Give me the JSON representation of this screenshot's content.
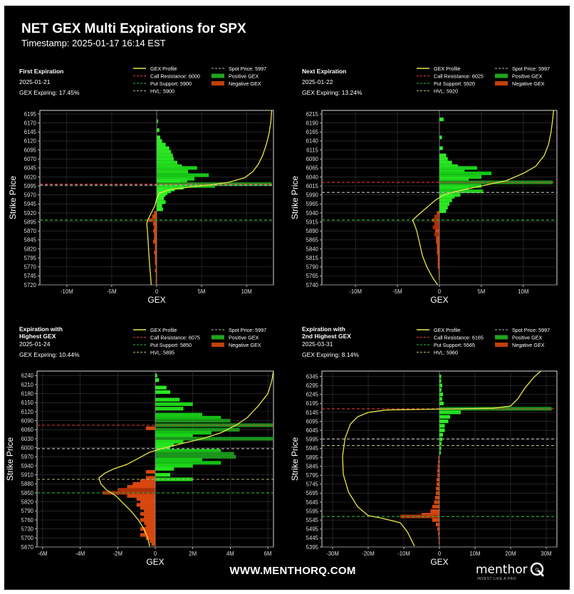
{
  "header": {
    "title": "NET GEX Multi Expirations for SPX",
    "timestamp": "Timestamp: 2025-01-17 16:14 EST"
  },
  "footer": {
    "url": "WWW.MENTHORQ.COM",
    "brand": "menthor",
    "brand_mark": "Q",
    "tagline": "INVEST LIKE A PRO"
  },
  "colors": {
    "background": "#000000",
    "profile": "#e8e84a",
    "call_resistance": "#e23a3a",
    "put_support": "#2fbf3a",
    "spot": "#bdbdbd",
    "hvl": "#b5b577",
    "positive": "#00e000",
    "negative": "#d23b10"
  },
  "chart_data": [
    {
      "type": "bar",
      "orientation": "horizontal",
      "title": "First Expiration",
      "date": "2025-01-21",
      "expiring": "GEX Expiring: 17.45%",
      "xlabel": "GEX",
      "ylabel": "Strike Price",
      "xlim": [
        -13,
        13
      ],
      "xticks": [
        -10,
        -5,
        0,
        5,
        10
      ],
      "xtick_labels": [
        "-10M",
        "-5M",
        "0",
        "5M",
        "10M"
      ],
      "ylim": [
        5720,
        6205
      ],
      "yticks": [
        5720,
        5745,
        5770,
        5795,
        5820,
        5845,
        5870,
        5895,
        5920,
        5945,
        5970,
        5995,
        6020,
        6045,
        6070,
        6095,
        6120,
        6145,
        6170,
        6195
      ],
      "levels": {
        "call_resistance": 6000,
        "put_support": 5900,
        "spot": 5997,
        "hvl": 5900
      },
      "legend": [
        "GEX Profile",
        "Call Resistance: 6000",
        "Put Support: 5900",
        "HVL: 5900",
        "Spot Price: 5997",
        "Positive GEX",
        "Negative GEX"
      ],
      "bars": [
        [
          6175,
          0.15
        ],
        [
          6150,
          0.3
        ],
        [
          6130,
          0.4
        ],
        [
          6120,
          0.6
        ],
        [
          6110,
          1.0
        ],
        [
          6100,
          1.4
        ],
        [
          6090,
          1.6
        ],
        [
          6080,
          1.8
        ],
        [
          6070,
          1.9
        ],
        [
          6060,
          2.3
        ],
        [
          6050,
          2.8
        ],
        [
          6045,
          4.5
        ],
        [
          6035,
          3.5
        ],
        [
          6025,
          5.8
        ],
        [
          6015,
          4.2
        ],
        [
          6010,
          3.4
        ],
        [
          6005,
          2.6
        ],
        [
          6000,
          12.8
        ],
        [
          5995,
          6.5
        ],
        [
          5990,
          3.0
        ],
        [
          5985,
          2.0
        ],
        [
          5980,
          1.6
        ],
        [
          5975,
          1.2
        ],
        [
          5970,
          1.0
        ],
        [
          5965,
          0.8
        ],
        [
          5960,
          0.8
        ],
        [
          5950,
          1.0
        ],
        [
          5940,
          0.6
        ],
        [
          5930,
          0.7
        ],
        [
          5920,
          -0.3
        ],
        [
          5910,
          -0.5
        ],
        [
          5900,
          -1.0
        ],
        [
          5890,
          -0.4
        ],
        [
          5880,
          -0.3
        ],
        [
          5870,
          -0.4
        ],
        [
          5860,
          -0.3
        ],
        [
          5850,
          -0.3
        ],
        [
          5840,
          -0.4
        ],
        [
          5830,
          -0.2
        ],
        [
          5820,
          -0.2
        ],
        [
          5810,
          -0.3
        ],
        [
          5800,
          -0.2
        ],
        [
          5790,
          -0.2
        ],
        [
          5780,
          -0.2
        ],
        [
          5770,
          -0.1
        ],
        [
          5760,
          -0.2
        ],
        [
          5750,
          -0.1
        ],
        [
          5740,
          -0.1
        ],
        [
          5730,
          -0.1
        ],
        [
          5725,
          -0.1
        ]
      ],
      "profile": [
        [
          -0.6,
          5720
        ],
        [
          -0.7,
          5750
        ],
        [
          -0.8,
          5780
        ],
        [
          -0.9,
          5820
        ],
        [
          -1.0,
          5860
        ],
        [
          -1.1,
          5890
        ],
        [
          -1.0,
          5900
        ],
        [
          -0.6,
          5920
        ],
        [
          -0.2,
          5940
        ],
        [
          0.0,
          5960
        ],
        [
          0.3,
          5975
        ],
        [
          1.5,
          5985
        ],
        [
          4.0,
          5993
        ],
        [
          6.0,
          5998
        ],
        [
          8.0,
          6005
        ],
        [
          9.8,
          6018
        ],
        [
          10.7,
          6035
        ],
        [
          11.3,
          6055
        ],
        [
          11.8,
          6080
        ],
        [
          12.2,
          6110
        ],
        [
          12.5,
          6140
        ],
        [
          12.7,
          6170
        ],
        [
          12.8,
          6205
        ]
      ]
    },
    {
      "type": "bar",
      "orientation": "horizontal",
      "title": "Next Expiration",
      "date": "2025-01-22",
      "expiring": "GEX Expiring: 13.24%",
      "xlabel": "GEX",
      "ylabel": "Strike Price",
      "xlim": [
        -14,
        14
      ],
      "xticks": [
        -10,
        -5,
        0,
        5,
        10
      ],
      "xtick_labels": [
        "-10M",
        "-5M",
        "0",
        "5M",
        "10M"
      ],
      "ylim": [
        5740,
        6225
      ],
      "yticks": [
        5740,
        5765,
        5790,
        5815,
        5840,
        5865,
        5890,
        5915,
        5940,
        5965,
        5990,
        6015,
        6040,
        6065,
        6090,
        6115,
        6140,
        6165,
        6190,
        6215
      ],
      "levels": {
        "call_resistance": 6025,
        "put_support": 5920,
        "spot": 5997,
        "hvl": 5920
      },
      "legend": [
        "GEX Profile",
        "Call Resistance: 6025",
        "Put Support: 5920",
        "HVL: 5920",
        "Spot Price: 5997",
        "Positive GEX",
        "Negative GEX"
      ],
      "bars": [
        [
          6200,
          0.5
        ],
        [
          6150,
          0.3
        ],
        [
          6120,
          0.4
        ],
        [
          6100,
          0.8
        ],
        [
          6090,
          1.0
        ],
        [
          6080,
          1.5
        ],
        [
          6070,
          2.2
        ],
        [
          6065,
          4.5
        ],
        [
          6055,
          3.0
        ],
        [
          6050,
          6.2
        ],
        [
          6040,
          5.0
        ],
        [
          6035,
          3.5
        ],
        [
          6025,
          13.5
        ],
        [
          6015,
          5.0
        ],
        [
          6010,
          3.5
        ],
        [
          6000,
          5.2
        ],
        [
          5990,
          2.5
        ],
        [
          5985,
          1.8
        ],
        [
          5975,
          1.5
        ],
        [
          5965,
          1.2
        ],
        [
          5955,
          1.0
        ],
        [
          5945,
          0.8
        ],
        [
          5940,
          -0.3
        ],
        [
          5930,
          -0.6
        ],
        [
          5920,
          -0.9
        ],
        [
          5910,
          -0.6
        ],
        [
          5900,
          -0.8
        ],
        [
          5890,
          -0.5
        ],
        [
          5880,
          -0.6
        ],
        [
          5870,
          -0.4
        ],
        [
          5860,
          -0.4
        ],
        [
          5850,
          -0.3
        ],
        [
          5840,
          -0.3
        ],
        [
          5830,
          -0.3
        ],
        [
          5820,
          -0.2
        ],
        [
          5810,
          -0.2
        ],
        [
          5800,
          -0.2
        ],
        [
          5790,
          -0.2
        ],
        [
          5780,
          -0.1
        ],
        [
          5770,
          -0.1
        ],
        [
          5760,
          -0.1
        ]
      ],
      "profile": [
        [
          -0.2,
          5740
        ],
        [
          -0.8,
          5760
        ],
        [
          -1.5,
          5790
        ],
        [
          -2.0,
          5820
        ],
        [
          -2.4,
          5860
        ],
        [
          -2.7,
          5890
        ],
        [
          -3.0,
          5910
        ],
        [
          -3.2,
          5920
        ],
        [
          -2.5,
          5935
        ],
        [
          -1.5,
          5955
        ],
        [
          -0.5,
          5975
        ],
        [
          0.5,
          5990
        ],
        [
          2.0,
          6000
        ],
        [
          4.0,
          6010
        ],
        [
          6.0,
          6020
        ],
        [
          8.0,
          6030
        ],
        [
          10.0,
          6050
        ],
        [
          11.5,
          6070
        ],
        [
          12.5,
          6100
        ],
        [
          13.0,
          6130
        ],
        [
          13.3,
          6165
        ],
        [
          13.5,
          6200
        ],
        [
          13.6,
          6225
        ]
      ]
    },
    {
      "type": "bar",
      "orientation": "horizontal",
      "title": "Expiration with Highest GEX",
      "date": "2025-01-24",
      "expiring": "GEX Expiring: 10.44%",
      "xlabel": "GEX",
      "ylabel": "Strike Price",
      "xlim": [
        -6.3,
        6.3
      ],
      "xticks": [
        -6,
        -4,
        -2,
        0,
        2,
        4,
        6
      ],
      "xtick_labels": [
        "-6M",
        "-4M",
        "-2M",
        "0",
        "2M",
        "4M",
        "6M"
      ],
      "ylim": [
        5670,
        6255
      ],
      "yticks": [
        5670,
        5700,
        5730,
        5760,
        5790,
        5820,
        5850,
        5880,
        5910,
        5940,
        5970,
        6000,
        6030,
        6060,
        6090,
        6120,
        6150,
        6180,
        6210,
        6240
      ],
      "levels": {
        "call_resistance": 6075,
        "put_support": 5850,
        "spot": 5997,
        "hvl": 5895
      },
      "legend": [
        "GEX Profile",
        "Call Resistance: 6075",
        "Put Support: 5850",
        "HVL: 5895",
        "Spot Price: 5997",
        "Positive GEX",
        "Negative GEX"
      ],
      "bars": [
        [
          6240,
          0.1
        ],
        [
          6225,
          0.2
        ],
        [
          6200,
          0.6
        ],
        [
          6185,
          0.8
        ],
        [
          6160,
          1.3
        ],
        [
          6145,
          2.0
        ],
        [
          6130,
          1.5
        ],
        [
          6110,
          2.5
        ],
        [
          6100,
          3.5
        ],
        [
          6090,
          4.0
        ],
        [
          6075,
          6.3
        ],
        [
          6065,
          -0.5
        ],
        [
          6060,
          4.5
        ],
        [
          6050,
          3.0
        ],
        [
          6040,
          2.0
        ],
        [
          6030,
          6.3
        ],
        [
          6020,
          1.5
        ],
        [
          6010,
          1.0
        ],
        [
          6000,
          0.8
        ],
        [
          5990,
          3.5
        ],
        [
          5980,
          4.2
        ],
        [
          5970,
          4.3
        ],
        [
          5960,
          2.5
        ],
        [
          5950,
          3.5
        ],
        [
          5940,
          2.0
        ],
        [
          5930,
          1.0
        ],
        [
          5920,
          -0.5
        ],
        [
          5910,
          0.8
        ],
        [
          5900,
          -0.5
        ],
        [
          5895,
          2.0
        ],
        [
          5890,
          -0.8
        ],
        [
          5880,
          -1.2
        ],
        [
          5870,
          -1.5
        ],
        [
          5860,
          -2.0
        ],
        [
          5850,
          -2.8
        ],
        [
          5840,
          -1.5
        ],
        [
          5830,
          -1.0
        ],
        [
          5820,
          -0.8
        ],
        [
          5810,
          -1.0
        ],
        [
          5800,
          -0.8
        ],
        [
          5790,
          -0.6
        ],
        [
          5780,
          -0.8
        ],
        [
          5770,
          -0.6
        ],
        [
          5760,
          -0.8
        ],
        [
          5750,
          -0.6
        ],
        [
          5740,
          -0.5
        ],
        [
          5730,
          -0.8
        ],
        [
          5720,
          -0.6
        ],
        [
          5710,
          -0.8
        ],
        [
          5700,
          -0.5
        ],
        [
          5690,
          -0.3
        ],
        [
          5680,
          -0.2
        ]
      ],
      "profile": [
        [
          -0.3,
          5672
        ],
        [
          -0.4,
          5700
        ],
        [
          -0.6,
          5730
        ],
        [
          -0.9,
          5760
        ],
        [
          -1.3,
          5790
        ],
        [
          -1.7,
          5815
        ],
        [
          -2.1,
          5840
        ],
        [
          -2.6,
          5860
        ],
        [
          -2.9,
          5880
        ],
        [
          -3.0,
          5900
        ],
        [
          -2.7,
          5915
        ],
        [
          -2.2,
          5930
        ],
        [
          -1.5,
          5945
        ],
        [
          -0.9,
          5965
        ],
        [
          -0.3,
          5985
        ],
        [
          0.5,
          6000
        ],
        [
          1.5,
          6015
        ],
        [
          2.5,
          6030
        ],
        [
          3.5,
          6050
        ],
        [
          4.3,
          6075
        ],
        [
          4.9,
          6100
        ],
        [
          5.5,
          6140
        ],
        [
          6.0,
          6180
        ],
        [
          6.2,
          6220
        ],
        [
          6.3,
          6255
        ]
      ]
    },
    {
      "type": "bar",
      "orientation": "horizontal",
      "title": "Expiration with 2nd Highest GEX",
      "date": "2025-03-31",
      "expiring": "GEX Expiring: 8.14%",
      "xlabel": "GEX",
      "ylabel": "Strike Price",
      "xlim": [
        -33,
        33
      ],
      "xticks": [
        -30,
        -20,
        -10,
        0,
        10,
        20,
        30
      ],
      "xtick_labels": [
        "-30M",
        "-20M",
        "-10M",
        "0",
        "10M",
        "20M",
        "30M"
      ],
      "ylim": [
        5395,
        6375
      ],
      "yticks": [
        5395,
        5445,
        5495,
        5545,
        5595,
        5645,
        5695,
        5745,
        5795,
        5845,
        5895,
        5945,
        5995,
        6045,
        6095,
        6145,
        6195,
        6245,
        6295,
        6345
      ],
      "levels": {
        "call_resistance": 6165,
        "put_support": 5565,
        "spot": 5997,
        "hvl": 5960
      },
      "legend": [
        "GEX Profile",
        "Call Resistance: 6165",
        "Put Support: 5565",
        "HVL: 5960",
        "Spot Price: 5997",
        "Positive GEX",
        "Negative GEX"
      ],
      "bars": [
        [
          6345,
          0.5
        ],
        [
          6320,
          0.5
        ],
        [
          6295,
          0.8
        ],
        [
          6270,
          0.6
        ],
        [
          6245,
          1.0
        ],
        [
          6220,
          0.8
        ],
        [
          6195,
          1.2
        ],
        [
          6165,
          31.5
        ],
        [
          6145,
          6.0
        ],
        [
          6120,
          3.0
        ],
        [
          6095,
          2.5
        ],
        [
          6070,
          1.5
        ],
        [
          6045,
          1.5
        ],
        [
          6020,
          1.0
        ],
        [
          5995,
          0.8
        ],
        [
          5970,
          0.6
        ],
        [
          5945,
          0.5
        ],
        [
          5920,
          0.4
        ],
        [
          5895,
          -0.3
        ],
        [
          5870,
          -0.4
        ],
        [
          5845,
          -0.5
        ],
        [
          5820,
          -0.6
        ],
        [
          5795,
          -0.6
        ],
        [
          5770,
          -0.8
        ],
        [
          5745,
          -0.8
        ],
        [
          5720,
          -1.0
        ],
        [
          5695,
          -1.0
        ],
        [
          5670,
          -1.2
        ],
        [
          5645,
          -1.5
        ],
        [
          5620,
          -2.0
        ],
        [
          5595,
          -2.5
        ],
        [
          5575,
          -5.0
        ],
        [
          5565,
          -11.0
        ],
        [
          5545,
          -2.0
        ],
        [
          5520,
          -1.0
        ],
        [
          5495,
          -0.6
        ],
        [
          5470,
          -0.4
        ],
        [
          5445,
          -0.3
        ],
        [
          5420,
          -0.2
        ]
      ],
      "profile": [
        [
          -7.0,
          5400
        ],
        [
          -8.0,
          5440
        ],
        [
          -9.0,
          5480
        ],
        [
          -11.0,
          5530
        ],
        [
          -16.0,
          5555
        ],
        [
          -20.0,
          5570
        ],
        [
          -23.0,
          5620
        ],
        [
          -25.5,
          5700
        ],
        [
          -27.0,
          5800
        ],
        [
          -27.2,
          5900
        ],
        [
          -26.5,
          6000
        ],
        [
          -25.0,
          6080
        ],
        [
          -23.0,
          6120
        ],
        [
          -20.0,
          6145
        ],
        [
          -15.0,
          6158
        ],
        [
          0.0,
          6163
        ],
        [
          15.0,
          6168
        ],
        [
          20.0,
          6180
        ],
        [
          22.0,
          6220
        ],
        [
          24.0,
          6280
        ],
        [
          26.5,
          6340
        ],
        [
          28.5,
          6375
        ]
      ]
    }
  ]
}
